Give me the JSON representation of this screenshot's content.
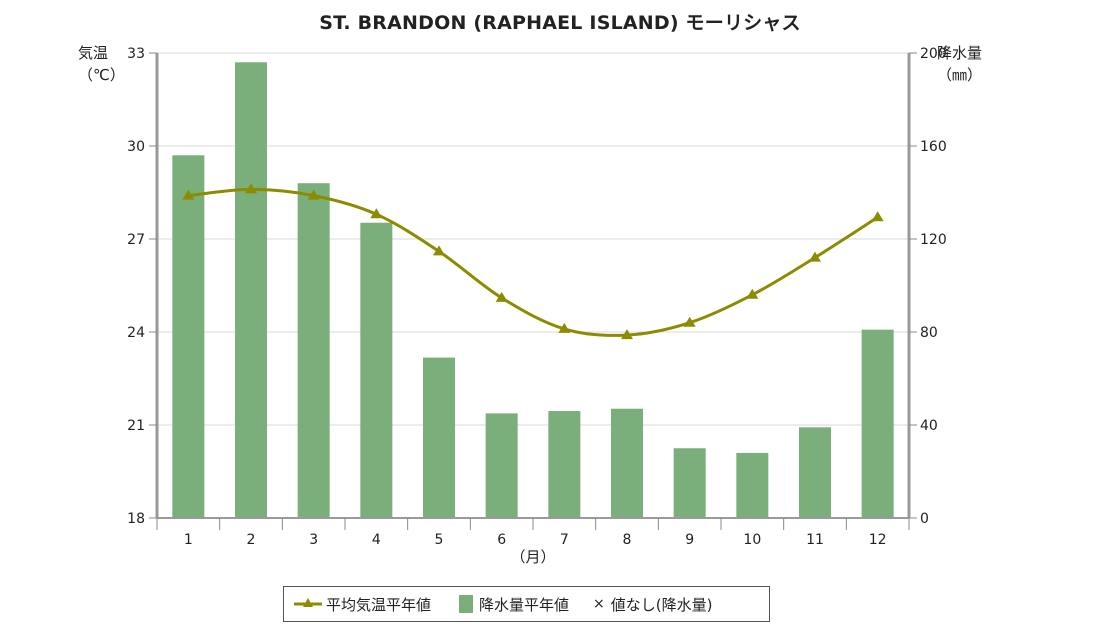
{
  "chart_data": {
    "type": "bar+line",
    "title": "ST. BRANDON (RAPHAEL ISLAND) モーリシャス",
    "xlabel": "（月）",
    "categories": [
      "1",
      "2",
      "3",
      "4",
      "5",
      "6",
      "7",
      "8",
      "9",
      "10",
      "11",
      "12"
    ],
    "left_axis": {
      "label_line1": "気温",
      "label_line2": "（℃）",
      "ylim": [
        18,
        33
      ],
      "ticks": [
        "33",
        "30",
        "27",
        "24",
        "21",
        "18"
      ],
      "tick_values": [
        33,
        30,
        27,
        24,
        21,
        18
      ]
    },
    "right_axis": {
      "label_line1": "降水量",
      "label_line2": "（㎜）",
      "ylim": [
        0,
        200
      ],
      "ticks": [
        "200",
        "160",
        "120",
        "80",
        "40",
        "0"
      ],
      "tick_values": [
        200,
        160,
        120,
        80,
        40,
        0
      ]
    },
    "series": [
      {
        "name": "降水量平年値",
        "kind": "bar",
        "axis": "right",
        "color": "#7aae7a",
        "values": [
          156,
          196,
          144,
          127,
          69,
          45,
          46,
          47,
          30,
          28,
          39,
          81
        ]
      },
      {
        "name": "平均気温平年値",
        "kind": "line",
        "axis": "left",
        "color": "#8c8c00",
        "values": [
          28.4,
          28.6,
          28.4,
          27.8,
          26.6,
          25.1,
          24.1,
          23.9,
          24.3,
          25.2,
          26.4,
          27.7
        ]
      }
    ],
    "legend": {
      "position": "bottom",
      "items": [
        "平均気温平年値",
        "降水量平年値",
        "値なし(降水量)"
      ],
      "missing_marker": "×"
    },
    "grid": true
  }
}
